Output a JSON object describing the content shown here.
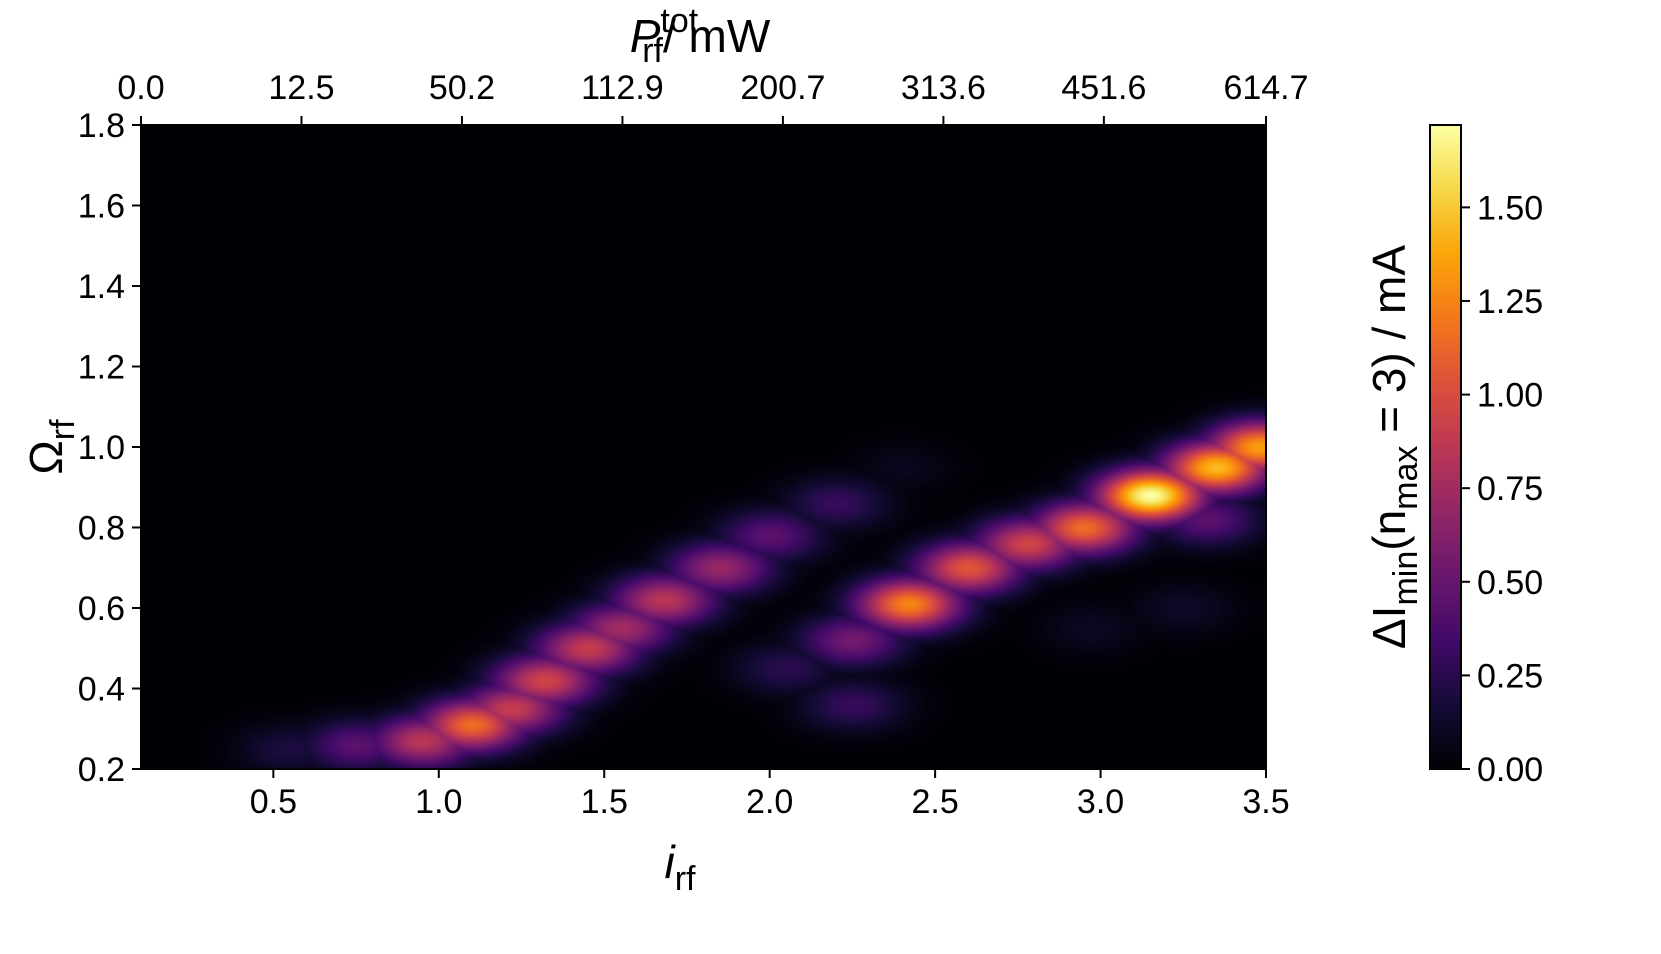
{
  "chart_data": {
    "type": "heatmap",
    "colormap": "inferno",
    "x_axis": {
      "main": "i",
      "sub": "rf",
      "range": [
        0.1,
        3.5
      ],
      "ticks": [
        0.5,
        1.0,
        1.5,
        2.0,
        2.5,
        3.0,
        3.5
      ],
      "tick_labels": [
        "0.5",
        "1.0",
        "1.5",
        "2.0",
        "2.5",
        "3.0",
        "3.5"
      ]
    },
    "y_axis": {
      "main": "Ω",
      "sub": "rf",
      "range": [
        0.2,
        1.8
      ],
      "ticks": [
        0.2,
        0.4,
        0.6,
        0.8,
        1.0,
        1.2,
        1.4,
        1.6,
        1.8
      ],
      "tick_labels": [
        "0.2",
        "0.4",
        "0.6",
        "0.8",
        "1.0",
        "1.2",
        "1.4",
        "1.6",
        "1.8"
      ]
    },
    "top_axis": {
      "main": "P",
      "sub": "rf",
      "sup": "tot",
      "unit": "/ mW",
      "ticks_at_i": [
        0.1,
        0.585,
        1.07,
        1.555,
        2.04,
        2.525,
        3.01,
        3.5
      ],
      "tick_labels": [
        "0.0",
        "12.5",
        "50.2",
        "112.9",
        "200.7",
        "313.6",
        "451.6",
        "614.7"
      ]
    },
    "colorbar": {
      "range": [
        0.0,
        1.72
      ],
      "ticks": [
        0.0,
        0.25,
        0.5,
        0.75,
        1.0,
        1.25,
        1.5
      ],
      "tick_labels": [
        "0.00",
        "0.25",
        "0.50",
        "0.75",
        "1.00",
        "1.25",
        "1.50"
      ],
      "label_prefix": "ΔI",
      "label_sub": "min",
      "label_mid": "(n",
      "label_sub2": "max",
      "label_suffix": " = 3) / mA"
    },
    "hotspots": [
      {
        "x": 0.55,
        "y": 0.25,
        "v": 0.2
      },
      {
        "x": 0.75,
        "y": 0.26,
        "v": 0.45
      },
      {
        "x": 0.95,
        "y": 0.27,
        "v": 0.85
      },
      {
        "x": 1.1,
        "y": 0.31,
        "v": 1.15
      },
      {
        "x": 1.22,
        "y": 0.35,
        "v": 0.9
      },
      {
        "x": 1.32,
        "y": 0.42,
        "v": 0.95
      },
      {
        "x": 1.45,
        "y": 0.5,
        "v": 0.9
      },
      {
        "x": 1.55,
        "y": 0.55,
        "v": 0.75
      },
      {
        "x": 1.68,
        "y": 0.62,
        "v": 0.85
      },
      {
        "x": 1.85,
        "y": 0.7,
        "v": 0.7
      },
      {
        "x": 2.0,
        "y": 0.78,
        "v": 0.45
      },
      {
        "x": 2.2,
        "y": 0.86,
        "v": 0.3
      },
      {
        "x": 2.25,
        "y": 0.52,
        "v": 0.55
      },
      {
        "x": 2.05,
        "y": 0.45,
        "v": 0.25
      },
      {
        "x": 2.25,
        "y": 0.36,
        "v": 0.3
      },
      {
        "x": 2.42,
        "y": 0.61,
        "v": 1.25
      },
      {
        "x": 2.6,
        "y": 0.7,
        "v": 1.05
      },
      {
        "x": 2.78,
        "y": 0.76,
        "v": 0.95
      },
      {
        "x": 2.95,
        "y": 0.8,
        "v": 1.15
      },
      {
        "x": 3.15,
        "y": 0.88,
        "v": 1.72
      },
      {
        "x": 3.35,
        "y": 0.95,
        "v": 1.45
      },
      {
        "x": 3.48,
        "y": 1.0,
        "v": 1.35
      },
      {
        "x": 3.32,
        "y": 0.82,
        "v": 0.45
      },
      {
        "x": 3.25,
        "y": 0.6,
        "v": 0.12
      },
      {
        "x": 2.97,
        "y": 0.55,
        "v": 0.1
      },
      {
        "x": 2.4,
        "y": 0.95,
        "v": 0.08
      }
    ]
  }
}
